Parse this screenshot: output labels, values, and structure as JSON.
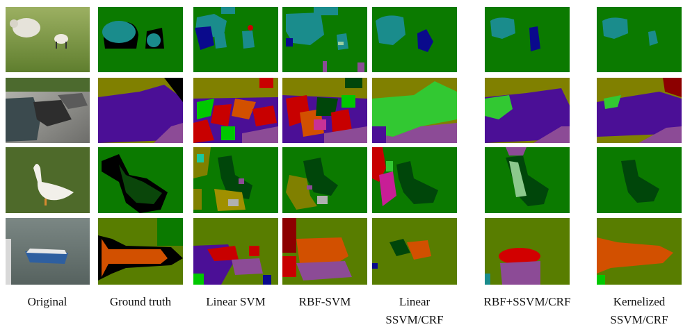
{
  "columns": [
    {
      "lines": [
        "Original"
      ]
    },
    {
      "lines": [
        "Ground truth"
      ]
    },
    {
      "lines": [
        "Linear SVM"
      ]
    },
    {
      "lines": [
        "RBF-SVM"
      ]
    },
    {
      "lines": [
        "Linear",
        "SSVM/CRF"
      ]
    },
    {
      "lines": [
        "RBF+SSVM/CRF"
      ]
    },
    {
      "lines": [
        "Kernelized",
        "SSVM/CRF"
      ]
    }
  ]
}
